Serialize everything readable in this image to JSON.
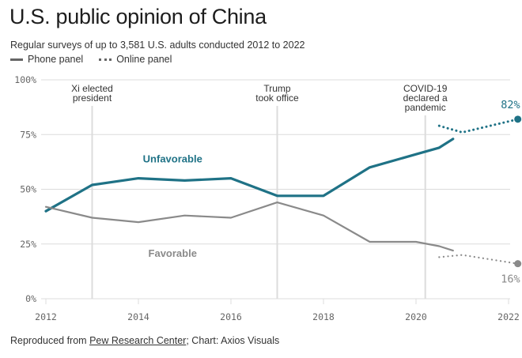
{
  "header": {
    "title": "U.S. public opinion of China",
    "subtitle": "Regular surveys of up to 3,581 U.S. adults conducted 2012 to 2022",
    "legend": [
      {
        "label": "Phone panel",
        "style": "solid"
      },
      {
        "label": "Online panel",
        "style": "dotted"
      }
    ]
  },
  "footer": {
    "prefix": "Reproduced from ",
    "link_text": "Pew Research Center",
    "suffix": "; Chart: Axios Visuals"
  },
  "colors": {
    "unfavorable": "#1f7286",
    "favorable": "#8a8a8a",
    "grid": "#dcdcdc"
  },
  "chart_data": {
    "type": "line",
    "title": "U.S. public opinion of China",
    "xlabel": "",
    "ylabel": "",
    "xlim": [
      2012,
      2022.2
    ],
    "ylim": [
      0,
      100
    ],
    "x_ticks": [
      2012,
      2014,
      2016,
      2018,
      2020,
      2022
    ],
    "x_tick_labels": [
      "2012",
      "2014",
      "2016",
      "2018",
      "2020",
      "2022"
    ],
    "y_ticks": [
      0,
      25,
      50,
      75,
      100
    ],
    "y_tick_labels": [
      "0%",
      "25%",
      "50%",
      "75%",
      "100%"
    ],
    "grid": true,
    "annotations": [
      {
        "x": 2013,
        "lines": [
          "Xi elected",
          "president"
        ]
      },
      {
        "x": 2017,
        "lines": [
          "Trump",
          "took office"
        ]
      },
      {
        "x": 2020.2,
        "lines": [
          "COVID-19",
          "declared a",
          "pandemic"
        ]
      }
    ],
    "series": [
      {
        "name": "Unfavorable",
        "panel": "Phone panel",
        "style": "solid",
        "x": [
          2012,
          2013,
          2014,
          2015,
          2016,
          2017,
          2018,
          2019,
          2020,
          2020.5,
          2020.8
        ],
        "values": [
          40,
          52,
          55,
          54,
          55,
          47,
          47,
          60,
          66,
          69,
          73
        ]
      },
      {
        "name": "Unfavorable",
        "panel": "Online panel",
        "style": "dotted",
        "x": [
          2020.5,
          2021,
          2022.2
        ],
        "values": [
          79,
          76,
          82
        ],
        "end_label": "82%"
      },
      {
        "name": "Favorable",
        "panel": "Phone panel",
        "style": "solid",
        "x": [
          2012,
          2013,
          2014,
          2015,
          2016,
          2017,
          2018,
          2019,
          2020,
          2020.5,
          2020.8
        ],
        "values": [
          42,
          37,
          35,
          38,
          37,
          44,
          38,
          26,
          26,
          24,
          22
        ]
      },
      {
        "name": "Favorable",
        "panel": "Online panel",
        "style": "dotted",
        "x": [
          2020.5,
          2021,
          2022.2
        ],
        "values": [
          19,
          20,
          16
        ],
        "end_label": "16%"
      }
    ],
    "series_labels": [
      {
        "text": "Unfavorable",
        "x": 2014.5,
        "y": 64
      },
      {
        "text": "Favorable",
        "x": 2014.5,
        "y": 21
      }
    ]
  }
}
